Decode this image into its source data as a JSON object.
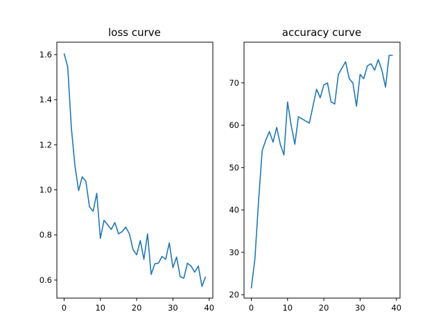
{
  "chart_data": [
    {
      "type": "line",
      "title": "loss curve",
      "xlabel": "",
      "ylabel": "",
      "xlim": [
        -2,
        41
      ],
      "ylim": [
        0.52,
        1.655
      ],
      "x_ticks": [
        0,
        10,
        20,
        30,
        40
      ],
      "y_ticks": [
        0.6,
        0.8,
        1.0,
        1.2,
        1.4,
        1.6
      ],
      "x_tick_labels": [
        "0",
        "10",
        "20",
        "30",
        "40"
      ],
      "y_tick_labels": [
        "0.6",
        "0.8",
        "1.0",
        "1.2",
        "1.4",
        "1.6"
      ],
      "grid": false,
      "color": "#1f77b4",
      "x": [
        0,
        1,
        2,
        3,
        4,
        5,
        6,
        7,
        8,
        9,
        10,
        11,
        12,
        13,
        14,
        15,
        16,
        17,
        18,
        19,
        20,
        21,
        22,
        23,
        24,
        25,
        26,
        27,
        28,
        29,
        30,
        31,
        32,
        33,
        34,
        35,
        36,
        37,
        38,
        39
      ],
      "values": [
        1.605,
        1.545,
        1.275,
        1.105,
        0.997,
        1.058,
        1.038,
        0.925,
        0.905,
        0.985,
        0.785,
        0.865,
        0.845,
        0.825,
        0.855,
        0.805,
        0.815,
        0.835,
        0.805,
        0.735,
        0.712,
        0.775,
        0.692,
        0.805,
        0.625,
        0.672,
        0.675,
        0.705,
        0.692,
        0.765,
        0.655,
        0.702,
        0.615,
        0.608,
        0.675,
        0.662,
        0.635,
        0.662,
        0.572,
        0.615
      ]
    },
    {
      "type": "line",
      "title": "accuracy curve",
      "xlabel": "",
      "ylabel": "",
      "xlim": [
        -2,
        41
      ],
      "ylim": [
        19.2,
        79.6
      ],
      "x_ticks": [
        0,
        10,
        20,
        30,
        40
      ],
      "y_ticks": [
        20,
        30,
        40,
        50,
        60,
        70
      ],
      "x_tick_labels": [
        "0",
        "10",
        "20",
        "30",
        "40"
      ],
      "y_tick_labels": [
        "20",
        "30",
        "40",
        "50",
        "60",
        "70"
      ],
      "grid": false,
      "color": "#1f77b4",
      "x": [
        0,
        1,
        2,
        3,
        4,
        5,
        6,
        7,
        8,
        9,
        10,
        11,
        12,
        13,
        14,
        15,
        16,
        17,
        18,
        19,
        20,
        21,
        22,
        23,
        24,
        25,
        26,
        27,
        28,
        29,
        30,
        31,
        32,
        33,
        34,
        35,
        36,
        37,
        38,
        39
      ],
      "values": [
        21.5,
        28.5,
        42.0,
        54.0,
        56.5,
        58.5,
        56.0,
        59.5,
        55.5,
        53.0,
        65.5,
        60.0,
        55.5,
        62.0,
        61.5,
        61.0,
        60.5,
        64.5,
        68.5,
        66.5,
        69.5,
        70.0,
        65.5,
        65.0,
        72.0,
        73.5,
        75.0,
        71.0,
        70.0,
        64.5,
        72.0,
        71.0,
        74.0,
        74.5,
        73.0,
        75.5,
        73.0,
        69.0,
        76.5,
        76.5
      ]
    }
  ]
}
